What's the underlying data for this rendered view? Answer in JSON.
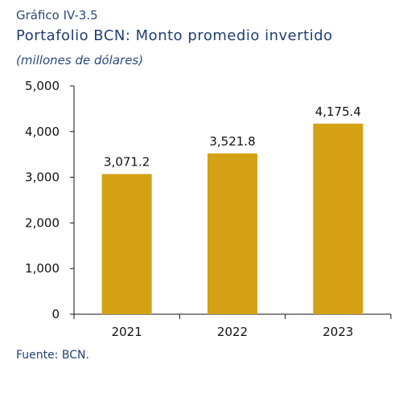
{
  "figure": {
    "number": "Gráfico IV-3.5",
    "title": "Portafolio BCN: Monto promedio invertido",
    "subtitle": "(millones de dólares)",
    "source": "Fuente: BCN."
  },
  "chart_data": {
    "type": "bar",
    "categories": [
      "2021",
      "2022",
      "2023"
    ],
    "values": [
      3071.2,
      3521.8,
      4175.4
    ],
    "data_labels": [
      "3,071.2",
      "3,521.8",
      "4,175.4"
    ],
    "y_ticks": [
      "0",
      "1,000",
      "2,000",
      "3,000",
      "4,000",
      "5,000"
    ],
    "ylim": [
      0,
      5000
    ],
    "grid": false,
    "legend": false,
    "bar_color": "#d4a114"
  }
}
